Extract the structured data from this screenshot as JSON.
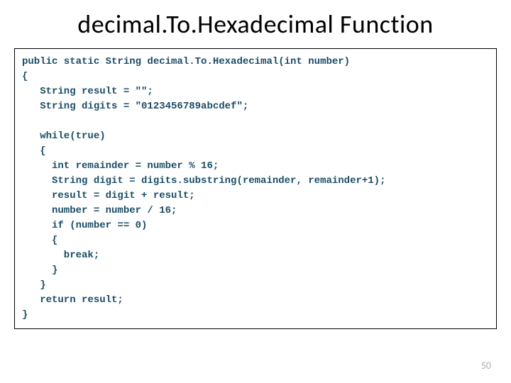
{
  "title": "decimal.To.Hexadecimal Function",
  "code": {
    "line1": "public static String decimal.To.Hexadecimal(int number)",
    "line2": "{",
    "line3": "   String result = \"\";",
    "line4": "   String digits = \"0123456789abcdef\";",
    "line5": "",
    "line6": "   while(true)",
    "line7": "   {",
    "line8": "     int remainder = number % 16;",
    "line9": "     String digit = digits.substring(remainder, remainder+1);",
    "line10": "     result = digit + result;",
    "line11": "     number = number / 16;",
    "line12": "     if (number == 0)",
    "line13": "     {",
    "line14": "       break;",
    "line15": "     }",
    "line16": "   }",
    "line17": "   return result;",
    "line18": "}"
  },
  "page_number": "50",
  "style": {
    "title_color": "#000000",
    "title_fontsize": 36,
    "code_color": "#1a4d66",
    "code_fontsize": 14,
    "code_fontfamily": "Courier New",
    "code_fontweight": "bold",
    "border_color": "#000000",
    "background_color": "#ffffff",
    "pagenum_color": "#b0b0b0",
    "pagenum_fontsize": 14
  }
}
